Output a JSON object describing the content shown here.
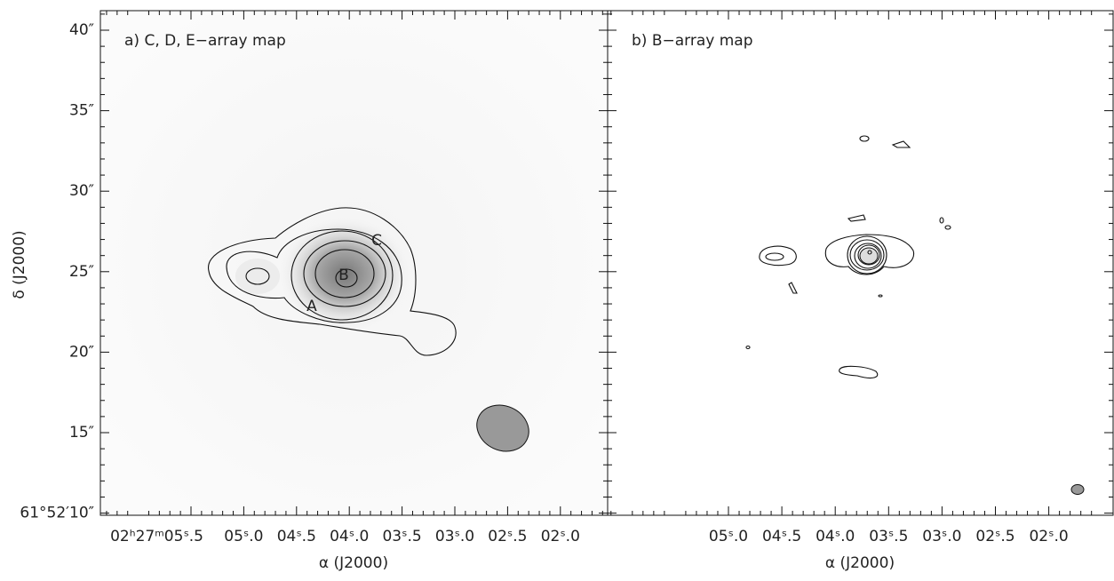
{
  "y_axis_title": "δ (J2000)",
  "y_ticks": [
    "40″",
    "35″",
    "30″",
    "25″",
    "20″",
    "15″",
    "61°52′10″"
  ],
  "panels": [
    {
      "label": "a) C, D, E−array map",
      "x_ticks": [
        "02ʰ27ᵐ05ˢ.5",
        "05ˢ.0",
        "04ˢ.5",
        "04ˢ.0",
        "03ˢ.5",
        "03ˢ.0",
        "02ˢ.5",
        "02ˢ.0"
      ],
      "x_axis_title": "α (J2000)",
      "annotations": [
        "A",
        "B",
        "C"
      ]
    },
    {
      "label": "b) B−array map",
      "x_ticks": [
        "05ˢ.0",
        "04ˢ.5",
        "04ˢ.0",
        "03ˢ.5",
        "03ˢ.0",
        "02ˢ.5",
        "02ˢ.0"
      ],
      "x_axis_title": "α (J2000)"
    }
  ]
}
